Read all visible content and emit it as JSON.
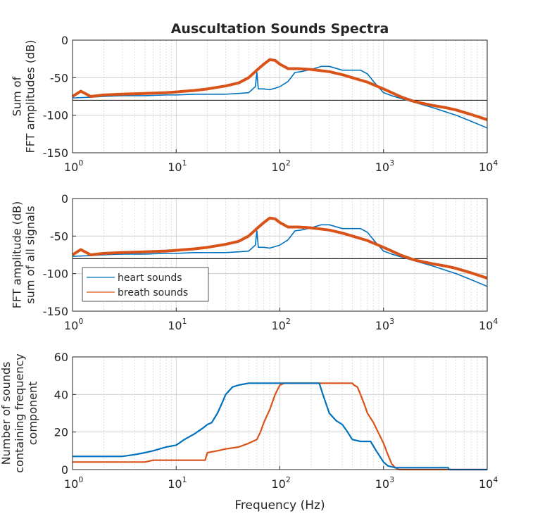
{
  "colors": {
    "heart": "#0072BD",
    "breath": "#D95319",
    "grid": "#c8c8c8",
    "axis": "#262626",
    "ref_line": "#000000"
  },
  "chart_data": [
    {
      "type": "line",
      "title": "Auscultation Sounds Spectra",
      "xscale": "log",
      "xlim": [
        1,
        10000
      ],
      "ylim": [
        -150,
        0
      ],
      "yticks": [
        0,
        -50,
        -100,
        -150
      ],
      "xtick_labels": [
        {
          "base": "10",
          "exp": "0"
        },
        {
          "base": "10",
          "exp": "1"
        },
        {
          "base": "10",
          "exp": "2"
        },
        {
          "base": "10",
          "exp": "3"
        },
        {
          "base": "10",
          "exp": "4"
        }
      ],
      "ylabel_lines": [
        "Sum of",
        "FFT amplitudes (dB)"
      ],
      "grid": true,
      "legend": null,
      "reference_line_y": -80,
      "series": [
        {
          "key": "heart",
          "x": [
            1,
            1.5,
            2,
            3,
            5,
            8,
            10,
            15,
            20,
            25,
            30,
            40,
            50,
            58,
            60,
            62,
            70,
            80,
            90,
            100,
            120,
            140,
            160,
            200,
            250,
            300,
            400,
            500,
            600,
            700,
            800,
            1000,
            1200,
            1500,
            2000,
            3000,
            5000,
            7000,
            10000
          ],
          "y": [
            -77,
            -76,
            -75,
            -74,
            -74,
            -73,
            -73,
            -72,
            -72,
            -72,
            -72,
            -71,
            -70,
            -62,
            -43,
            -65,
            -65,
            -66,
            -64,
            -62,
            -55,
            -43,
            -42,
            -39,
            -35,
            -35,
            -40,
            -40,
            -40,
            -45,
            -55,
            -70,
            -74,
            -78,
            -83,
            -90,
            -100,
            -108,
            -117
          ]
        },
        {
          "key": "breath",
          "x": [
            1,
            1.2,
            1.5,
            2,
            3,
            5,
            8,
            10,
            15,
            20,
            30,
            40,
            50,
            60,
            70,
            80,
            90,
            100,
            120,
            150,
            200,
            300,
            400,
            500,
            700,
            1000,
            1500,
            2000,
            3000,
            4000,
            5000,
            7000,
            10000
          ],
          "y": [
            -75,
            -68,
            -75,
            -73,
            -72,
            -71,
            -70,
            -69,
            -67,
            -65,
            -61,
            -57,
            -50,
            -40,
            -32,
            -26,
            -27,
            -32,
            -38,
            -38,
            -39,
            -42,
            -46,
            -50,
            -56,
            -65,
            -76,
            -82,
            -87,
            -90,
            -93,
            -99,
            -106
          ]
        }
      ]
    },
    {
      "type": "line",
      "title": "",
      "xscale": "log",
      "xlim": [
        1,
        10000
      ],
      "ylim": [
        -150,
        0
      ],
      "yticks": [
        0,
        -50,
        -100,
        -150
      ],
      "xtick_labels": [
        {
          "base": "10",
          "exp": "0"
        },
        {
          "base": "10",
          "exp": "1"
        },
        {
          "base": "10",
          "exp": "2"
        },
        {
          "base": "10",
          "exp": "3"
        },
        {
          "base": "10",
          "exp": "4"
        }
      ],
      "ylabel_lines": [
        "FFT amplitude (dB)",
        "sum of all signals"
      ],
      "grid": true,
      "legend": {
        "placement": "bottom-left",
        "entries": [
          {
            "key": "heart",
            "label": "heart sounds"
          },
          {
            "key": "breath",
            "label": "breath sounds"
          }
        ]
      },
      "reference_line_y": -80,
      "series": [
        {
          "key": "heart",
          "x": [
            1,
            1.5,
            2,
            3,
            5,
            8,
            10,
            15,
            20,
            25,
            30,
            40,
            50,
            58,
            60,
            62,
            70,
            80,
            90,
            100,
            120,
            140,
            160,
            200,
            250,
            300,
            400,
            500,
            600,
            700,
            800,
            1000,
            1200,
            1500,
            2000,
            3000,
            5000,
            7000,
            10000
          ],
          "y": [
            -77,
            -76,
            -75,
            -74,
            -74,
            -73,
            -73,
            -72,
            -72,
            -72,
            -72,
            -71,
            -70,
            -62,
            -43,
            -65,
            -65,
            -66,
            -64,
            -62,
            -55,
            -43,
            -42,
            -39,
            -35,
            -35,
            -40,
            -40,
            -40,
            -45,
            -55,
            -70,
            -74,
            -78,
            -83,
            -90,
            -100,
            -108,
            -117
          ]
        },
        {
          "key": "breath",
          "x": [
            1,
            1.2,
            1.5,
            2,
            3,
            5,
            8,
            10,
            15,
            20,
            30,
            40,
            50,
            60,
            70,
            80,
            90,
            100,
            120,
            150,
            200,
            300,
            400,
            500,
            700,
            1000,
            1500,
            2000,
            3000,
            4000,
            5000,
            7000,
            10000
          ],
          "y": [
            -75,
            -68,
            -75,
            -73,
            -72,
            -71,
            -70,
            -69,
            -67,
            -65,
            -61,
            -57,
            -50,
            -40,
            -32,
            -26,
            -27,
            -32,
            -38,
            -38,
            -39,
            -42,
            -46,
            -50,
            -56,
            -65,
            -76,
            -82,
            -87,
            -90,
            -93,
            -99,
            -106
          ]
        }
      ]
    },
    {
      "type": "line",
      "title": "",
      "xscale": "log",
      "xlim": [
        1,
        10000
      ],
      "ylim": [
        0,
        60
      ],
      "yticks": [
        0,
        20,
        40,
        60
      ],
      "xtick_labels": [
        {
          "base": "10",
          "exp": "0"
        },
        {
          "base": "10",
          "exp": "1"
        },
        {
          "base": "10",
          "exp": "2"
        },
        {
          "base": "10",
          "exp": "3"
        },
        {
          "base": "10",
          "exp": "4"
        }
      ],
      "ylabel_lines": [
        "Number of sounds",
        "containing frequency",
        "component"
      ],
      "xlabel": "Frequency (Hz)",
      "grid": true,
      "legend": null,
      "reference_line_y": null,
      "series": [
        {
          "key": "heart",
          "x": [
            1,
            2,
            3,
            4,
            5,
            6,
            8,
            10,
            12,
            15,
            18,
            20,
            22,
            25,
            28,
            30,
            35,
            40,
            50,
            60,
            100,
            150,
            200,
            240,
            260,
            300,
            350,
            400,
            450,
            500,
            600,
            750,
            850,
            1000,
            1100,
            1300,
            3000,
            4200,
            4300,
            10000
          ],
          "y": [
            7,
            7,
            7,
            8,
            9,
            10,
            12,
            13,
            16,
            19,
            22,
            24,
            25,
            30,
            36,
            40,
            44,
            45,
            46,
            46,
            46,
            46,
            46,
            46,
            40,
            30,
            26,
            24,
            20,
            16,
            15,
            15,
            10,
            4,
            2,
            1,
            1,
            1,
            0,
            0
          ]
        },
        {
          "key": "breath",
          "x": [
            1,
            5,
            6,
            19,
            20,
            25,
            30,
            40,
            50,
            60,
            65,
            70,
            80,
            90,
            100,
            110,
            150,
            300,
            450,
            500,
            520,
            560,
            600,
            650,
            700,
            800,
            850,
            1000,
            1100,
            1200,
            1300,
            1400,
            10000
          ],
          "y": [
            4,
            4,
            5,
            5,
            9,
            10,
            11,
            12,
            14,
            16,
            20,
            25,
            32,
            40,
            45,
            46,
            46,
            46,
            46,
            46,
            45,
            44,
            40,
            35,
            30,
            25,
            22,
            14,
            8,
            3,
            1,
            0,
            0
          ]
        }
      ]
    }
  ]
}
